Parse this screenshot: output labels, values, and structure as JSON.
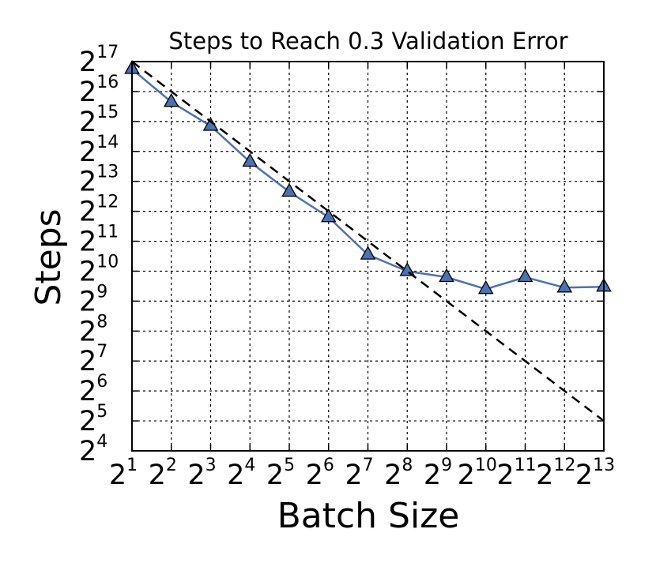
{
  "chart_data": {
    "type": "line",
    "title": "Steps to Reach 0.3 Validation Error",
    "xlabel": "Batch Size",
    "ylabel": "Steps",
    "x_scale": "log2",
    "y_scale": "log2",
    "xlim_exp": [
      1,
      13
    ],
    "ylim_exp": [
      4,
      17
    ],
    "x_ticks": [
      {
        "base": "2",
        "exp": "1"
      },
      {
        "base": "2",
        "exp": "2"
      },
      {
        "base": "2",
        "exp": "3"
      },
      {
        "base": "2",
        "exp": "4"
      },
      {
        "base": "2",
        "exp": "5"
      },
      {
        "base": "2",
        "exp": "6"
      },
      {
        "base": "2",
        "exp": "7"
      },
      {
        "base": "2",
        "exp": "8"
      },
      {
        "base": "2",
        "exp": "9"
      },
      {
        "base": "2",
        "exp": "10"
      },
      {
        "base": "2",
        "exp": "11"
      },
      {
        "base": "2",
        "exp": "12"
      },
      {
        "base": "2",
        "exp": "13"
      }
    ],
    "y_ticks": [
      {
        "base": "2",
        "exp": "4"
      },
      {
        "base": "2",
        "exp": "5"
      },
      {
        "base": "2",
        "exp": "6"
      },
      {
        "base": "2",
        "exp": "7"
      },
      {
        "base": "2",
        "exp": "8"
      },
      {
        "base": "2",
        "exp": "9"
      },
      {
        "base": "2",
        "exp": "10"
      },
      {
        "base": "2",
        "exp": "11"
      },
      {
        "base": "2",
        "exp": "12"
      },
      {
        "base": "2",
        "exp": "13"
      },
      {
        "base": "2",
        "exp": "14"
      },
      {
        "base": "2",
        "exp": "15"
      },
      {
        "base": "2",
        "exp": "16"
      },
      {
        "base": "2",
        "exp": "17"
      }
    ],
    "grid": true,
    "series": [
      {
        "style": "solid",
        "color": "#4c72b0",
        "marker": "triangle",
        "points": [
          {
            "x_exp": 1,
            "y_exp": 16.75
          },
          {
            "x_exp": 2,
            "y_exp": 15.65
          },
          {
            "x_exp": 3,
            "y_exp": 14.85
          },
          {
            "x_exp": 4,
            "y_exp": 13.65
          },
          {
            "x_exp": 5,
            "y_exp": 12.65
          },
          {
            "x_exp": 6,
            "y_exp": 11.8
          },
          {
            "x_exp": 7,
            "y_exp": 10.55
          },
          {
            "x_exp": 8,
            "y_exp": 10.0
          },
          {
            "x_exp": 9,
            "y_exp": 9.8
          },
          {
            "x_exp": 10,
            "y_exp": 9.4
          },
          {
            "x_exp": 11,
            "y_exp": 9.8
          },
          {
            "x_exp": 12,
            "y_exp": 9.45
          },
          {
            "x_exp": 13,
            "y_exp": 9.48
          }
        ]
      },
      {
        "style": "dashed",
        "color": "#000000",
        "points": [
          {
            "x_exp": 1,
            "y_exp": 17
          },
          {
            "x_exp": 13,
            "y_exp": 5
          }
        ]
      }
    ]
  }
}
